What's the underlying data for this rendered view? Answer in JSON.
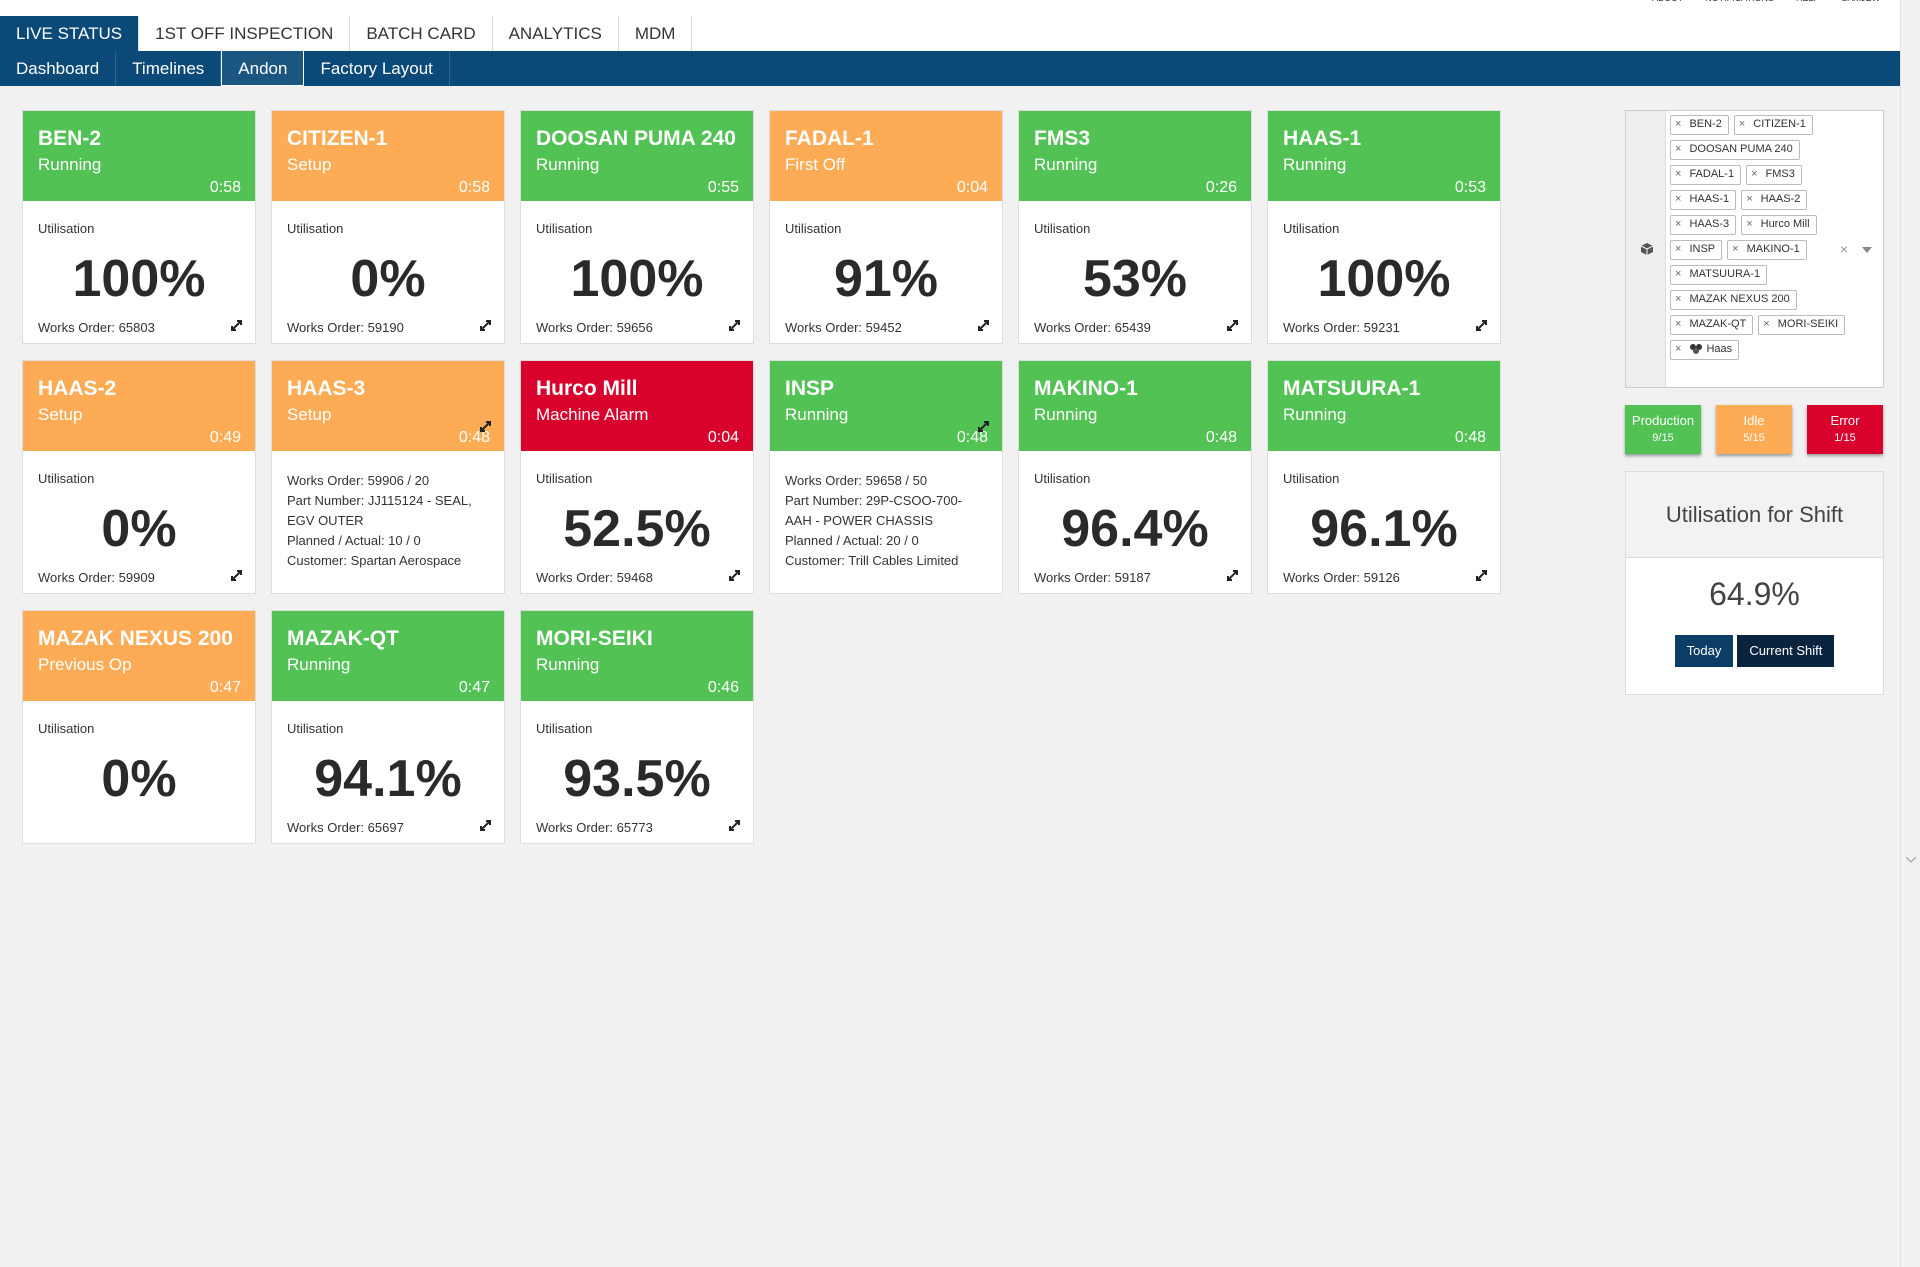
{
  "top_links": [
    "ABOUT",
    "NOTIFICATIONS",
    "HELP",
    "SAMJEW"
  ],
  "nav": {
    "tabs": [
      "LIVE STATUS",
      "1ST OFF INSPECTION",
      "BATCH CARD",
      "ANALYTICS",
      "MDM"
    ],
    "subtabs": [
      "Dashboard",
      "Timelines",
      "Andon",
      "Factory Layout"
    ]
  },
  "machines": [
    {
      "name": "BEN-2",
      "status": "Running",
      "time": "0:58",
      "state": "green",
      "label": "Utilisation",
      "utilisation": "100%",
      "works_order": "Works Order: 65803"
    },
    {
      "name": "CITIZEN-1",
      "status": "Setup",
      "time": "0:58",
      "state": "orange",
      "label": "Utilisation",
      "utilisation": "0%",
      "works_order": "Works Order: 59190"
    },
    {
      "name": "DOOSAN PUMA 240",
      "status": "Running",
      "time": "0:55",
      "state": "green",
      "label": "Utilisation",
      "utilisation": "100%",
      "works_order": "Works Order: 59656"
    },
    {
      "name": "FADAL-1",
      "status": "First Off",
      "time": "0:04",
      "state": "orange",
      "label": "Utilisation",
      "utilisation": "91%",
      "works_order": "Works Order: 59452"
    },
    {
      "name": "FMS3",
      "status": "Running",
      "time": "0:26",
      "state": "green",
      "label": "Utilisation",
      "utilisation": "53%",
      "works_order": "Works Order: 65439"
    },
    {
      "name": "HAAS-1",
      "status": "Running",
      "time": "0:53",
      "state": "green",
      "label": "Utilisation",
      "utilisation": "100%",
      "works_order": "Works Order: 59231"
    },
    {
      "name": "HAAS-2",
      "status": "Setup",
      "time": "0:49",
      "state": "orange",
      "label": "Utilisation",
      "utilisation": "0%",
      "works_order": "Works Order: 59909"
    },
    {
      "name": "HAAS-3",
      "status": "Setup",
      "time": "0:48",
      "state": "orange",
      "details": [
        "Works Order: 59906 / 20",
        "Part Number: JJ115124 - SEAL, EGV OUTER",
        "Planned / Actual: 10 / 0",
        "Customer: Spartan Aerospace"
      ]
    },
    {
      "name": "Hurco Mill",
      "status": "Machine Alarm",
      "time": "0:04",
      "state": "red",
      "label": "Utilisation",
      "utilisation": "52.5%",
      "works_order": "Works Order: 59468"
    },
    {
      "name": "INSP",
      "status": "Running",
      "time": "0:48",
      "state": "green",
      "details": [
        "Works Order: 59658 / 50",
        "Part Number: 29P-CSOO-700-AAH - POWER CHASSIS",
        "Planned / Actual: 20 / 0",
        "Customer: Trill Cables Limited"
      ]
    },
    {
      "name": "MAKINO-1",
      "status": "Running",
      "time": "0:48",
      "state": "green",
      "label": "Utilisation",
      "utilisation": "96.4%",
      "works_order": "Works Order: 59187"
    },
    {
      "name": "MATSUURA-1",
      "status": "Running",
      "time": "0:48",
      "state": "green",
      "label": "Utilisation",
      "utilisation": "96.1%",
      "works_order": "Works Order: 59126"
    },
    {
      "name": "MAZAK NEXUS 200",
      "status": "Previous Op",
      "time": "0:47",
      "state": "orange",
      "label": "Utilisation",
      "utilisation": "0%"
    },
    {
      "name": "MAZAK-QT",
      "status": "Running",
      "time": "0:47",
      "state": "green",
      "label": "Utilisation",
      "utilisation": "94.1%",
      "works_order": "Works Order: 65697"
    },
    {
      "name": "MORI-SEIKI",
      "status": "Running",
      "time": "0:46",
      "state": "green",
      "label": "Utilisation",
      "utilisation": "93.5%",
      "works_order": "Works Order: 65773"
    }
  ],
  "filter": {
    "tags": [
      "BEN-2",
      "CITIZEN-1",
      "DOOSAN PUMA 240",
      "FADAL-1",
      "FMS3",
      "HAAS-1",
      "HAAS-2",
      "HAAS-3",
      "Hurco Mill",
      "INSP",
      "MAKINO-1",
      "MATSUURA-1",
      "MAZAK NEXUS 200",
      "MAZAK-QT",
      "MORI-SEIKI",
      "Haas"
    ]
  },
  "summary": [
    {
      "label": "Production",
      "count": "9/15",
      "state": "green"
    },
    {
      "label": "Idle",
      "count": "5/15",
      "state": "orange"
    },
    {
      "label": "Error",
      "count": "1/15",
      "state": "red"
    }
  ],
  "shift": {
    "title": "Utilisation for Shift",
    "value": "64.9%",
    "buttons": [
      "Today",
      "Current Shift"
    ]
  }
}
